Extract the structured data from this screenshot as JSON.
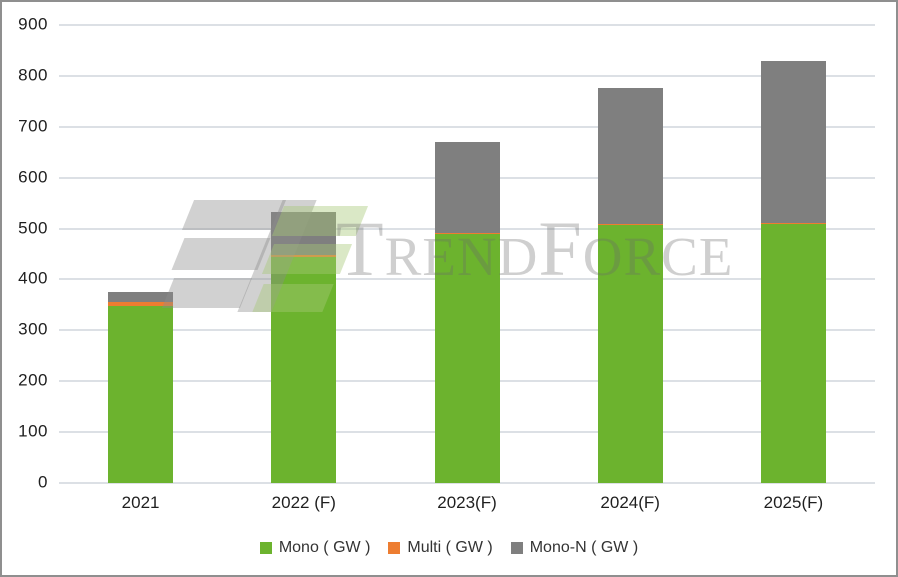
{
  "watermark": {
    "text": "TrendForce",
    "logo_icon": "trendforce-tf-logo"
  },
  "chart_data": {
    "type": "bar",
    "stacked": true,
    "title": "",
    "xlabel": "",
    "ylabel": "",
    "categories": [
      "2021",
      "2022 (F)",
      "2023(F)",
      "2024(F)",
      "2025(F)"
    ],
    "series": [
      {
        "name": "Mono ( GW )",
        "color": "#6CB32E",
        "values": [
          348,
          445,
          490,
          508,
          509
        ]
      },
      {
        "name": "Multi ( GW )",
        "color": "#ED7D31",
        "values": [
          7,
          4,
          2,
          1,
          1
        ]
      },
      {
        "name": "Mono-N ( GW )",
        "color": "#7F7F7F",
        "values": [
          20,
          83,
          178,
          267,
          320
        ]
      }
    ],
    "totals": [
      375,
      532,
      670,
      776,
      830
    ],
    "ylim": [
      0,
      900
    ],
    "ytick_interval": 100,
    "grid": "horizontal",
    "legend_position": "bottom",
    "colors": {
      "gridline": "#dce0e5",
      "axis_text": "#1f1f1f",
      "frame_border": "#8f8f8f",
      "background": "#ffffff"
    }
  }
}
